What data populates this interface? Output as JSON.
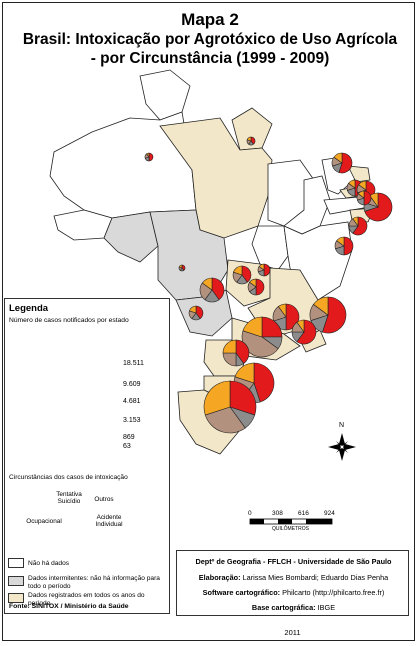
{
  "map": {
    "title_line1": "Mapa 2",
    "title_line2": "Brasil: Intoxicação por Agrotóxico de Uso Agrícola",
    "title_line3": "- por Circunstância (1999 - 2009)"
  },
  "colors": {
    "tentativa_suicidio": "#e31a1c",
    "outros": "#8c8c8c",
    "ocupacional": "#b2917e",
    "acidente_individual": "#f5a623",
    "nao_ha_dados": "#ffffff",
    "dados_intermitentes": "#d9d9d9",
    "dados_todos_anos": "#f3e7c9"
  },
  "legend": {
    "title": "Legenda",
    "size_caption": "Número de casos notificados por estado",
    "sizes": [
      "18.511",
      "9.609",
      "4.681",
      "3.153",
      "869",
      "63"
    ],
    "circ_caption": "Circunstâncias dos casos de intoxicação",
    "pie_labels": {
      "tentativa": "Tentativa Suicídio",
      "outros": "Outros",
      "ocupacional": "Ocupacional",
      "acidente": "Acidente Individual"
    },
    "swatches": [
      {
        "label": "Não há dados"
      },
      {
        "label": "Dados intermitentes: não há informação para todo o período"
      },
      {
        "label": "Dados registrados em todos os anos do período"
      }
    ],
    "fonte": "Fonte: SINITOX / Ministério da Saúde"
  },
  "scale": {
    "ticks": [
      "0",
      "308",
      "616",
      "924"
    ],
    "unit": "QUILÔMETROS"
  },
  "north_label": "N",
  "credits": {
    "dept": "Deptº de Geografia - FFLCH - Universidade de São Paulo",
    "elab_label": "Elaboração:",
    "elab_value": "Larissa Mies Bombardi; Eduardo Dias Penha",
    "soft_label": "Software cartográfico:",
    "soft_value": "Philcarto (http://philcarto.free.fr)",
    "base_label": "Base cartográfica:",
    "base_value": "IBGE",
    "year": "2011"
  },
  "state_pies": [
    {
      "state": "AM",
      "shares": [
        0.5,
        0.2,
        0.2,
        0.1
      ]
    },
    {
      "state": "AP",
      "shares": [
        0.4,
        0.2,
        0.2,
        0.2
      ]
    },
    {
      "state": "CE",
      "shares": [
        0.55,
        0.15,
        0.15,
        0.15
      ]
    },
    {
      "state": "RN",
      "shares": [
        0.5,
        0.2,
        0.15,
        0.15
      ]
    },
    {
      "state": "PB",
      "shares": [
        0.55,
        0.15,
        0.15,
        0.15
      ]
    },
    {
      "state": "PE",
      "shares": [
        0.7,
        0.1,
        0.1,
        0.1
      ]
    },
    {
      "state": "AL",
      "shares": [
        0.5,
        0.2,
        0.15,
        0.15
      ]
    },
    {
      "state": "SE",
      "shares": [
        0.5,
        0.2,
        0.15,
        0.15
      ]
    },
    {
      "state": "BA",
      "shares": [
        0.6,
        0.15,
        0.15,
        0.1
      ]
    },
    {
      "state": "TO",
      "shares": [
        0.4,
        0.2,
        0.2,
        0.2
      ]
    },
    {
      "state": "MT",
      "shares": [
        0.4,
        0.2,
        0.25,
        0.15
      ]
    },
    {
      "state": "RO",
      "shares": [
        0.4,
        0.2,
        0.2,
        0.2
      ]
    },
    {
      "state": "GO",
      "shares": [
        0.5,
        0.15,
        0.2,
        0.15
      ]
    },
    {
      "state": "DF",
      "shares": [
        0.5,
        0.2,
        0.15,
        0.15
      ]
    },
    {
      "state": "MS",
      "shares": [
        0.4,
        0.2,
        0.2,
        0.2
      ]
    },
    {
      "state": "MG",
      "shares": [
        0.5,
        0.2,
        0.2,
        0.1
      ]
    },
    {
      "state": "ES",
      "shares": [
        0.55,
        0.15,
        0.15,
        0.15
      ]
    },
    {
      "state": "RJ",
      "shares": [
        0.6,
        0.15,
        0.15,
        0.1
      ]
    },
    {
      "state": "SP",
      "shares": [
        0.25,
        0.1,
        0.45,
        0.2
      ]
    },
    {
      "state": "PR",
      "shares": [
        0.4,
        0.1,
        0.25,
        0.25
      ]
    },
    {
      "state": "SC",
      "shares": [
        0.45,
        0.15,
        0.2,
        0.2
      ]
    },
    {
      "state": "RS",
      "shares": [
        0.3,
        0.1,
        0.3,
        0.3
      ]
    }
  ]
}
